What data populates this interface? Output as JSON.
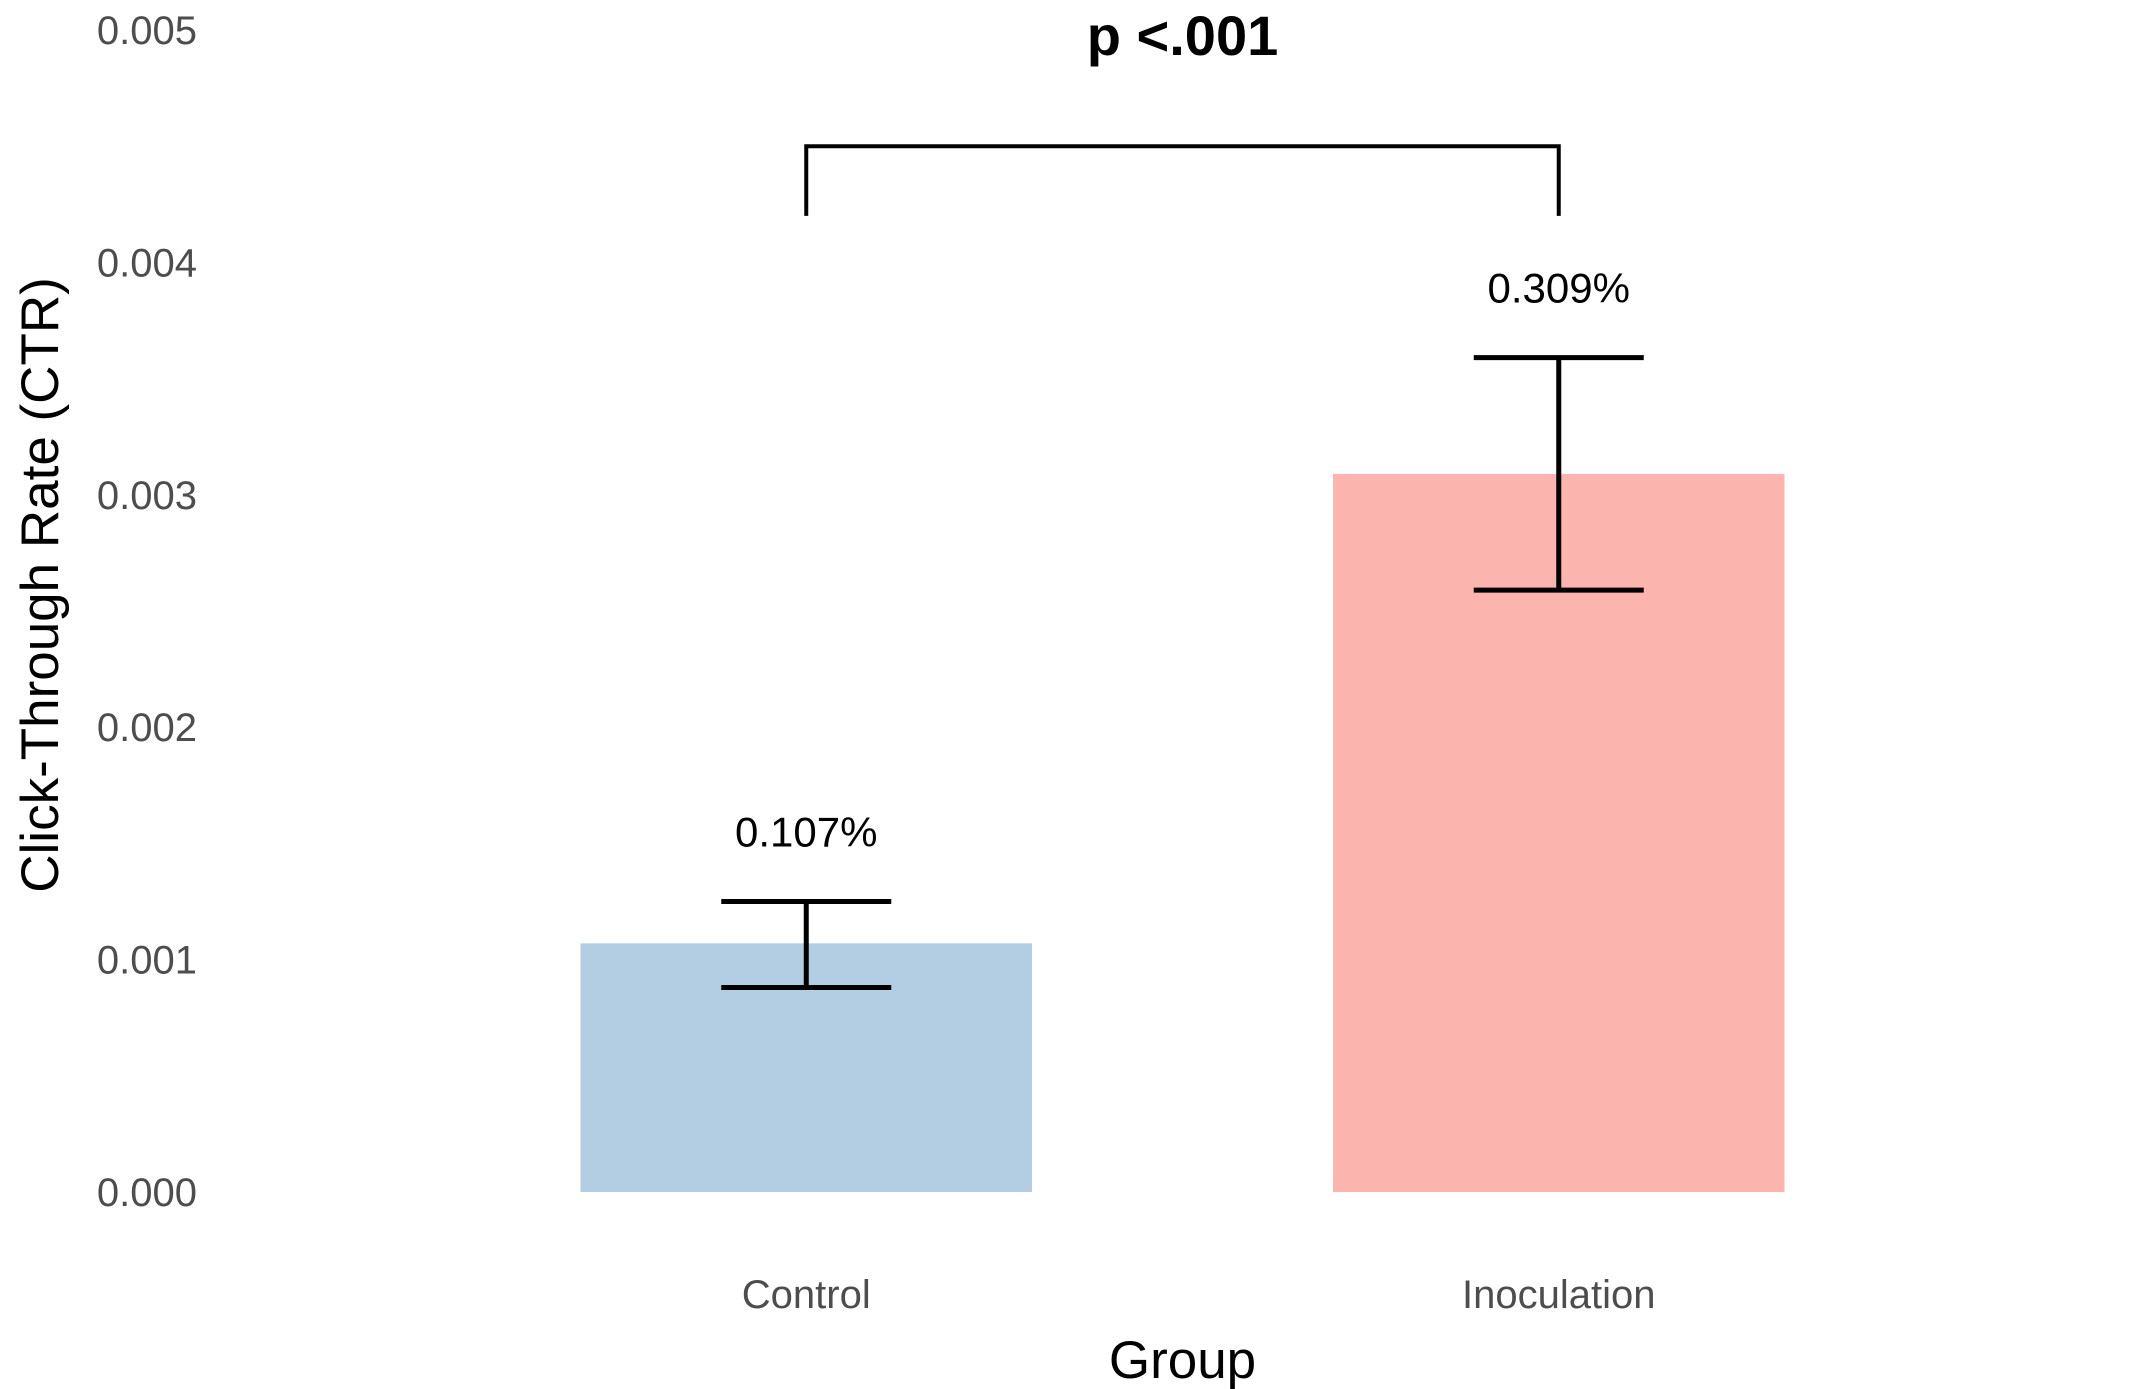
{
  "chart_data": {
    "type": "bar",
    "categories": [
      "Control",
      "Inoculation"
    ],
    "values": [
      0.00107,
      0.00309
    ],
    "error_bars": [
      {
        "low": 0.00088,
        "high": 0.00125
      },
      {
        "low": 0.00259,
        "high": 0.00359
      }
    ],
    "data_labels": [
      "0.107%",
      "0.309%"
    ],
    "colors": [
      "#b3cde3",
      "#fbb4ae"
    ],
    "xlabel": "Group",
    "ylabel": "Click-Through Rate (CTR)",
    "ylim": [
      0,
      0.005
    ],
    "yticks": [
      "0.000",
      "0.001",
      "0.002",
      "0.003",
      "0.004",
      "0.005"
    ],
    "significance": {
      "label": "p <.001",
      "bracket_y": 0.0045,
      "bracket_bottom": 0.0042
    },
    "grid": false,
    "legend": "none"
  }
}
